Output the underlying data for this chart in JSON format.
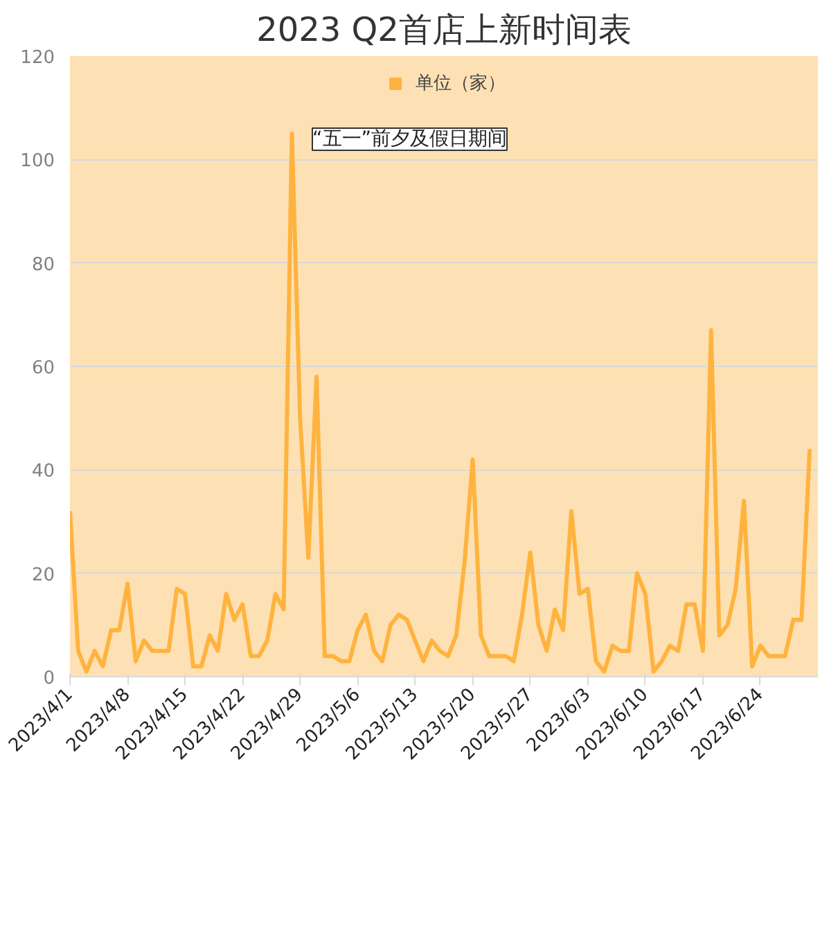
{
  "chart_data": {
    "type": "line",
    "title": "2023 Q2首店上新时间表",
    "x": [
      "2023-04-01",
      "2023-04-02",
      "2023-04-03",
      "2023-04-04",
      "2023-04-05",
      "2023-04-06",
      "2023-04-07",
      "2023-04-08",
      "2023-04-09",
      "2023-04-10",
      "2023-04-11",
      "2023-04-12",
      "2023-04-13",
      "2023-04-14",
      "2023-04-15",
      "2023-04-16",
      "2023-04-17",
      "2023-04-18",
      "2023-04-19",
      "2023-04-20",
      "2023-04-21",
      "2023-04-22",
      "2023-04-23",
      "2023-04-24",
      "2023-04-25",
      "2023-04-26",
      "2023-04-27",
      "2023-04-28",
      "2023-04-29",
      "2023-04-30",
      "2023-05-01",
      "2023-05-02",
      "2023-05-03",
      "2023-05-04",
      "2023-05-05",
      "2023-05-06",
      "2023-05-07",
      "2023-05-08",
      "2023-05-09",
      "2023-05-10",
      "2023-05-11",
      "2023-05-12",
      "2023-05-13",
      "2023-05-14",
      "2023-05-15",
      "2023-05-16",
      "2023-05-17",
      "2023-05-18",
      "2023-05-19",
      "2023-05-20",
      "2023-05-21",
      "2023-05-22",
      "2023-05-23",
      "2023-05-24",
      "2023-05-25",
      "2023-05-26",
      "2023-05-27",
      "2023-05-28",
      "2023-05-29",
      "2023-05-30",
      "2023-05-31",
      "2023-06-01",
      "2023-06-02",
      "2023-06-03",
      "2023-06-04",
      "2023-06-05",
      "2023-06-06",
      "2023-06-07",
      "2023-06-08",
      "2023-06-09",
      "2023-06-10",
      "2023-06-11",
      "2023-06-12",
      "2023-06-13",
      "2023-06-14",
      "2023-06-15",
      "2023-06-16",
      "2023-06-17",
      "2023-06-18",
      "2023-06-19",
      "2023-06-20",
      "2023-06-21",
      "2023-06-22",
      "2023-06-23",
      "2023-06-24",
      "2023-06-25",
      "2023-06-26",
      "2023-06-27",
      "2023-06-28",
      "2023-06-29",
      "2023-06-30"
    ],
    "series": [
      {
        "name": "单位（家）",
        "color": "#ffb33f",
        "values": [
          32,
          5,
          1,
          5,
          2,
          9,
          9,
          18,
          3,
          7,
          5,
          5,
          5,
          17,
          16,
          2,
          2,
          8,
          5,
          16,
          11,
          14,
          4,
          4,
          7,
          16,
          13,
          105,
          50,
          23,
          58,
          4,
          4,
          3,
          3,
          9,
          12,
          5,
          3,
          10,
          12,
          11,
          7,
          3,
          7,
          5,
          4,
          8,
          22,
          42,
          8,
          4,
          4,
          4,
          3,
          12,
          24,
          10,
          5,
          13,
          9,
          32,
          16,
          17,
          3,
          1,
          6,
          5,
          5,
          20,
          16,
          1,
          3,
          6,
          5,
          14,
          14,
          5,
          67,
          8,
          10,
          17,
          34,
          2,
          6,
          4,
          4,
          4,
          11,
          11,
          44
        ]
      }
    ],
    "xlim": [
      "2023-04-01",
      "2023-07-01"
    ],
    "xticks": [
      {
        "value": "2023-04-01",
        "label": "2023/4/1"
      },
      {
        "value": "2023-04-08",
        "label": "2023/4/8"
      },
      {
        "value": "2023-04-15",
        "label": "2023/4/15"
      },
      {
        "value": "2023-04-22",
        "label": "2023/4/22"
      },
      {
        "value": "2023-04-29",
        "label": "2023/4/29"
      },
      {
        "value": "2023-05-06",
        "label": "2023/5/6"
      },
      {
        "value": "2023-05-13",
        "label": "2023/5/13"
      },
      {
        "value": "2023-05-20",
        "label": "2023/5/20"
      },
      {
        "value": "2023-05-27",
        "label": "2023/5/27"
      },
      {
        "value": "2023-06-03",
        "label": "2023/6/3"
      },
      {
        "value": "2023-06-10",
        "label": "2023/6/10"
      },
      {
        "value": "2023-06-17",
        "label": "2023/6/17"
      },
      {
        "value": "2023-06-24",
        "label": "2023/6/24"
      }
    ],
    "ylim": [
      0,
      120
    ],
    "yticks": [
      0,
      20,
      40,
      60,
      80,
      100,
      120
    ],
    "grid": "y",
    "legend": "top",
    "marker": "none",
    "line_style": "solid",
    "annotations": [
      "“五一”前夕及假日期间"
    ]
  }
}
